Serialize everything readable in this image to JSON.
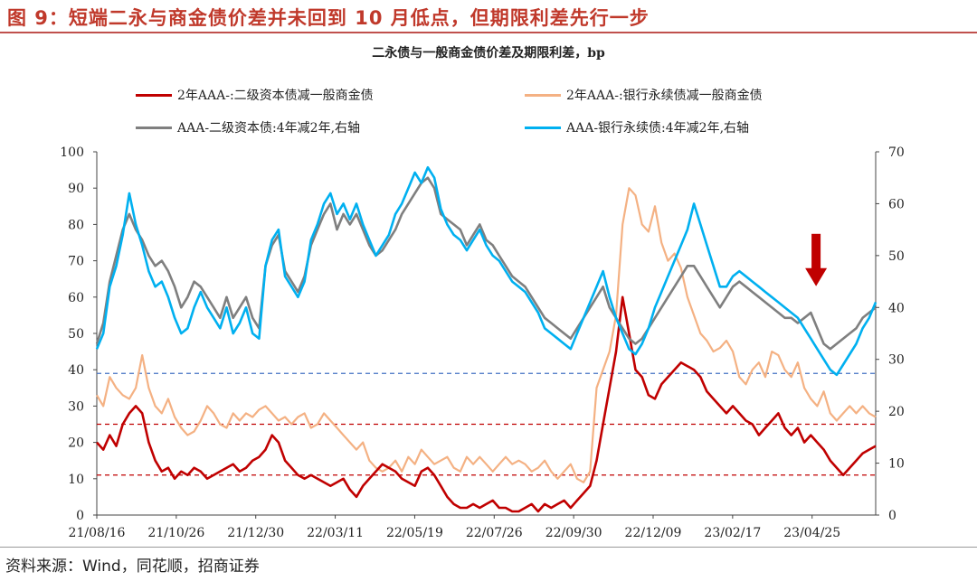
{
  "figure": {
    "title": "图 9：短端二永与商金债价差并未回到 10 月低点，但期限利差先行一步",
    "source": "资料来源：Wind，同花顺，招商证券"
  },
  "chart_data": {
    "type": "line",
    "title": "二永债与一般商金债价差及期限利差，bp",
    "x_tick_labels": [
      "21/08/16",
      "21/10/26",
      "21/12/30",
      "22/03/11",
      "22/05/19",
      "22/07/26",
      "22/09/30",
      "22/12/09",
      "23/02/17",
      "23/04/25"
    ],
    "y_left": {
      "min": 0,
      "max": 100,
      "ticks": [
        0,
        10,
        20,
        30,
        40,
        50,
        60,
        70,
        80,
        90,
        100
      ]
    },
    "y_right": {
      "min": 0,
      "max": 70,
      "ticks": [
        0,
        10,
        20,
        30,
        40,
        50,
        60,
        70
      ]
    },
    "reference_lines": [
      {
        "axis": "left",
        "value": 39,
        "color": "#4472c4",
        "style": "dashed"
      },
      {
        "axis": "left",
        "value": 25,
        "color": "#c00000",
        "style": "dashed"
      },
      {
        "axis": "left",
        "value": 11,
        "color": "#c00000",
        "style": "dashed"
      }
    ],
    "annotation": {
      "type": "arrow-down",
      "x_index": 9.05,
      "y_left": 60,
      "color": "#c00000"
    },
    "series": [
      {
        "name": "2年AAA-:二级资本债减一般商金债",
        "axis": "left",
        "color": "#c00000",
        "values": [
          20,
          18,
          22,
          19,
          25,
          28,
          30,
          28,
          20,
          15,
          12,
          13,
          10,
          12,
          11,
          13,
          12,
          10,
          11,
          12,
          13,
          14,
          12,
          13,
          15,
          16,
          18,
          22,
          20,
          15,
          13,
          11,
          10,
          11,
          10,
          9,
          8,
          9,
          10,
          7,
          5,
          8,
          10,
          12,
          14,
          13,
          12,
          10,
          9,
          8,
          12,
          13,
          11,
          8,
          5,
          3,
          2,
          2,
          3,
          2,
          3,
          4,
          2,
          2,
          1,
          1,
          2,
          3,
          1,
          3,
          2,
          3,
          4,
          2,
          4,
          6,
          8,
          15,
          25,
          35,
          45,
          60,
          50,
          40,
          38,
          33,
          32,
          36,
          38,
          40,
          42,
          41,
          40,
          38,
          34,
          32,
          30,
          28,
          30,
          28,
          26,
          25,
          22,
          24,
          26,
          28,
          24,
          22,
          24,
          20,
          22,
          20,
          18,
          15,
          13,
          11,
          13,
          15,
          17,
          18,
          19
        ]
      },
      {
        "name": "2年AAA-:银行永续债减一般商金债",
        "axis": "left",
        "color": "#f4b183",
        "values": [
          33,
          30,
          38,
          35,
          33,
          32,
          35,
          44,
          35,
          30,
          28,
          32,
          27,
          24,
          22,
          23,
          26,
          30,
          28,
          25,
          24,
          28,
          26,
          28,
          27,
          29,
          30,
          28,
          26,
          27,
          25,
          27,
          28,
          24,
          25,
          28,
          26,
          24,
          22,
          20,
          18,
          20,
          15,
          13,
          12,
          13,
          15,
          12,
          16,
          14,
          18,
          16,
          14,
          15,
          16,
          13,
          12,
          16,
          14,
          16,
          14,
          12,
          14,
          16,
          14,
          15,
          14,
          12,
          13,
          15,
          12,
          10,
          12,
          14,
          10,
          9,
          12,
          35,
          40,
          45,
          55,
          80,
          90,
          88,
          80,
          78,
          85,
          75,
          70,
          72,
          68,
          60,
          55,
          50,
          48,
          45,
          46,
          48,
          45,
          38,
          36,
          40,
          42,
          38,
          45,
          44,
          40,
          38,
          42,
          35,
          32,
          30,
          34,
          28,
          26,
          28,
          30,
          28,
          30,
          28,
          27
        ]
      },
      {
        "name": "AAA-二级资本债:4年减2年,右轴",
        "axis": "right",
        "color": "#7f7f7f",
        "values": [
          33,
          37,
          45,
          50,
          55,
          58,
          55,
          53,
          50,
          48,
          49,
          47,
          44,
          40,
          42,
          45,
          44,
          42,
          40,
          38,
          42,
          38,
          40,
          42,
          38,
          36,
          48,
          52,
          54,
          47,
          45,
          43,
          46,
          52,
          55,
          58,
          60,
          55,
          58,
          56,
          58,
          55,
          52,
          50,
          51,
          53,
          55,
          58,
          60,
          62,
          64,
          65,
          63,
          58,
          57,
          56,
          55,
          52,
          54,
          56,
          53,
          52,
          50,
          48,
          46,
          45,
          44,
          42,
          40,
          38,
          37,
          36,
          35,
          34,
          36,
          38,
          40,
          42,
          44,
          40,
          38,
          36,
          34,
          33,
          34,
          36,
          38,
          40,
          42,
          44,
          46,
          48,
          48,
          46,
          44,
          42,
          40,
          42,
          44,
          45,
          44,
          43,
          42,
          41,
          40,
          39,
          38,
          38,
          37,
          38,
          39,
          36,
          33,
          32,
          33,
          34,
          35,
          36,
          38,
          39,
          40
        ]
      },
      {
        "name": "AAA-银行永续债:4年减2年,右轴",
        "axis": "right",
        "color": "#00b0f0",
        "values": [
          32,
          35,
          44,
          48,
          54,
          62,
          56,
          52,
          47,
          44,
          45,
          42,
          38,
          35,
          36,
          40,
          43,
          40,
          38,
          36,
          40,
          35,
          37,
          40,
          35,
          34,
          48,
          53,
          55,
          46,
          44,
          42,
          45,
          53,
          56,
          60,
          62,
          58,
          60,
          57,
          60,
          56,
          53,
          50,
          52,
          54,
          58,
          60,
          63,
          66,
          64,
          67,
          65,
          59,
          56,
          54,
          53,
          51,
          53,
          55,
          52,
          50,
          49,
          47,
          45,
          44,
          43,
          41,
          39,
          36,
          35,
          34,
          33,
          32,
          35,
          38,
          41,
          44,
          47,
          42,
          38,
          35,
          32,
          31,
          33,
          36,
          40,
          43,
          46,
          49,
          52,
          55,
          60,
          56,
          52,
          48,
          44,
          44,
          46,
          47,
          46,
          45,
          44,
          43,
          42,
          41,
          40,
          39,
          38,
          36,
          34,
          32,
          30,
          28,
          27,
          29,
          31,
          33,
          36,
          38,
          41
        ]
      }
    ]
  },
  "legend": [
    "2年AAA-:二级资本债减一般商金债",
    "2年AAA-:银行永续债减一般商金债",
    "AAA-二级资本债:4年减2年,右轴",
    "AAA-银行永续债:4年减2年,右轴"
  ]
}
